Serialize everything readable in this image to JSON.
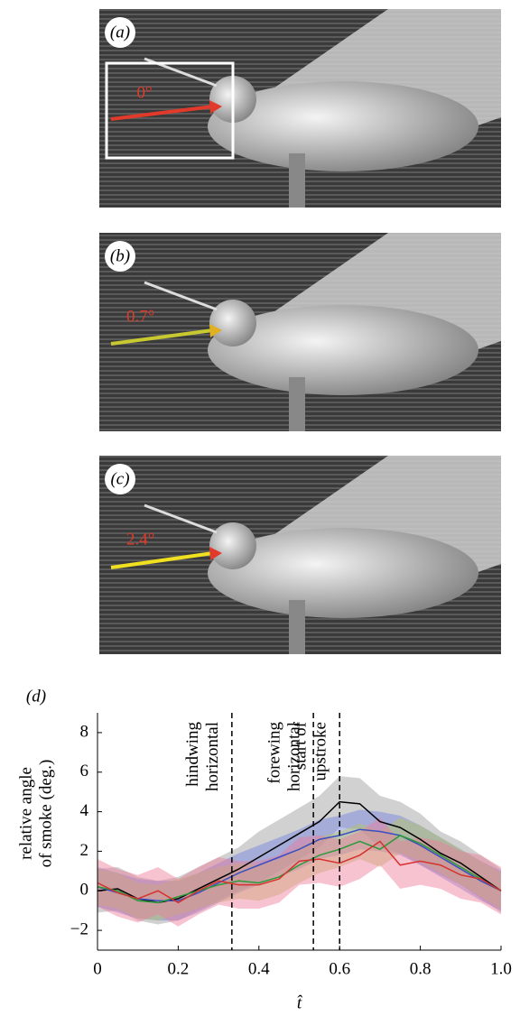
{
  "panels": [
    {
      "label": "(a)",
      "angle": "0°"
    },
    {
      "label": "(b)",
      "angle": "0.7°"
    },
    {
      "label": "(c)",
      "angle": "2.4°"
    }
  ],
  "chart_data": {
    "type": "line",
    "panel_label": "(d)",
    "y_label": [
      "relative angle",
      "of smoke (deg.)"
    ],
    "x_label": "t̂",
    "x": [
      0,
      0.05,
      0.1,
      0.15,
      0.2,
      0.25,
      0.3,
      0.35,
      0.4,
      0.45,
      0.5,
      0.55,
      0.6,
      0.65,
      0.7,
      0.75,
      0.8,
      0.85,
      0.9,
      0.95,
      1
    ],
    "series": [
      {
        "color": "#000000",
        "band_color": "#9a9a9a",
        "values": [
          0,
          0.1,
          -0.4,
          -0.6,
          -0.4,
          0.1,
          0.6,
          1.1,
          1.7,
          2.3,
          2.9,
          3.5,
          4.5,
          4.4,
          3.5,
          3.2,
          2.6,
          1.9,
          1.4,
          0.7,
          0
        ],
        "lower": [
          -1.1,
          -1.0,
          -1.5,
          -1.7,
          -1.5,
          -1.0,
          -0.5,
          0.0,
          0.4,
          1.0,
          1.6,
          2.2,
          3.2,
          3.1,
          2.2,
          1.9,
          1.3,
          0.8,
          0.3,
          -0.4,
          -1.1
        ],
        "upper": [
          1.1,
          1.2,
          0.7,
          0.5,
          0.7,
          1.2,
          1.7,
          2.2,
          3.0,
          3.6,
          4.2,
          4.8,
          5.8,
          5.7,
          4.8,
          4.5,
          3.9,
          3.0,
          2.5,
          1.8,
          1.1
        ]
      },
      {
        "color": "#3a4fc0",
        "band_color": "#6f7fe0",
        "values": [
          0.2,
          -0.1,
          -0.4,
          -0.5,
          -0.5,
          -0.1,
          0.4,
          0.9,
          1.3,
          1.7,
          2.1,
          2.6,
          2.8,
          3.1,
          3.0,
          2.8,
          2.3,
          1.7,
          1.1,
          0.5,
          0
        ],
        "lower": [
          -0.8,
          -1.1,
          -1.4,
          -1.5,
          -1.5,
          -1.1,
          -0.6,
          -0.1,
          0.3,
          0.7,
          1.1,
          1.6,
          1.8,
          2.1,
          2.0,
          1.8,
          1.3,
          0.7,
          0.1,
          -0.5,
          -1.0
        ],
        "upper": [
          1.2,
          0.9,
          0.6,
          0.5,
          0.5,
          0.9,
          1.4,
          1.9,
          2.3,
          2.7,
          3.1,
          3.6,
          3.8,
          4.1,
          4.0,
          3.8,
          3.3,
          2.7,
          2.1,
          1.5,
          1.0
        ]
      },
      {
        "color": "#2a9a3a",
        "band_color": "#b8c860",
        "values": [
          0.2,
          0,
          -0.5,
          -0.6,
          -0.3,
          0,
          0.3,
          0.5,
          0.4,
          0.7,
          1.3,
          1.8,
          2.1,
          2.5,
          2.1,
          2.8,
          2.4,
          1.8,
          1.2,
          0.6,
          0
        ],
        "lower": [
          -0.7,
          -0.9,
          -1.4,
          -1.5,
          -1.2,
          -0.9,
          -0.6,
          -0.4,
          -0.5,
          -0.2,
          0.4,
          0.9,
          1.2,
          1.6,
          1.2,
          1.9,
          1.5,
          0.9,
          0.3,
          -0.3,
          -0.9
        ],
        "upper": [
          1.1,
          0.9,
          0.4,
          0.3,
          0.6,
          0.9,
          1.2,
          1.4,
          1.3,
          1.6,
          2.2,
          2.7,
          3.0,
          3.4,
          3.0,
          3.7,
          3.3,
          2.7,
          2.1,
          1.5,
          0.9
        ]
      },
      {
        "color": "#d6322e",
        "band_color": "#f07a9a",
        "values": [
          0.4,
          -0.1,
          -0.4,
          0,
          -0.6,
          0,
          0.5,
          0.3,
          0.3,
          0.6,
          1.5,
          1.6,
          1.4,
          1.8,
          2.5,
          1.3,
          1.5,
          1.3,
          0.8,
          0.6,
          0
        ],
        "lower": [
          -0.8,
          -1.3,
          -1.6,
          -1.2,
          -1.8,
          -1.2,
          -0.7,
          -0.9,
          -0.9,
          -0.6,
          0.3,
          0.4,
          0.2,
          0.6,
          1.3,
          0.1,
          0.3,
          0.1,
          -0.4,
          -0.6,
          -1.2
        ],
        "upper": [
          1.6,
          1.1,
          0.8,
          1.2,
          0.6,
          1.2,
          1.7,
          1.5,
          1.5,
          1.8,
          2.7,
          2.8,
          2.6,
          3.0,
          3.7,
          2.5,
          2.7,
          2.5,
          2.0,
          1.8,
          1.2
        ]
      }
    ],
    "annotations": [
      {
        "x": 0.333,
        "lines": [
          "hindwing",
          "horizontal"
        ]
      },
      {
        "x": 0.535,
        "lines": [
          "forewing",
          "horizontal"
        ]
      },
      {
        "x": 0.6,
        "lines": [
          "start of",
          "upstroke"
        ]
      }
    ],
    "xlim": [
      0,
      1
    ],
    "ylim": [
      -3,
      9
    ],
    "xticks": [
      0,
      0.2,
      0.4,
      0.6,
      0.8,
      {
        "value": 1,
        "label": "1.0"
      }
    ],
    "yticks": [
      {
        "value": -2,
        "label": "−2"
      },
      0,
      2,
      4,
      6,
      8
    ]
  }
}
